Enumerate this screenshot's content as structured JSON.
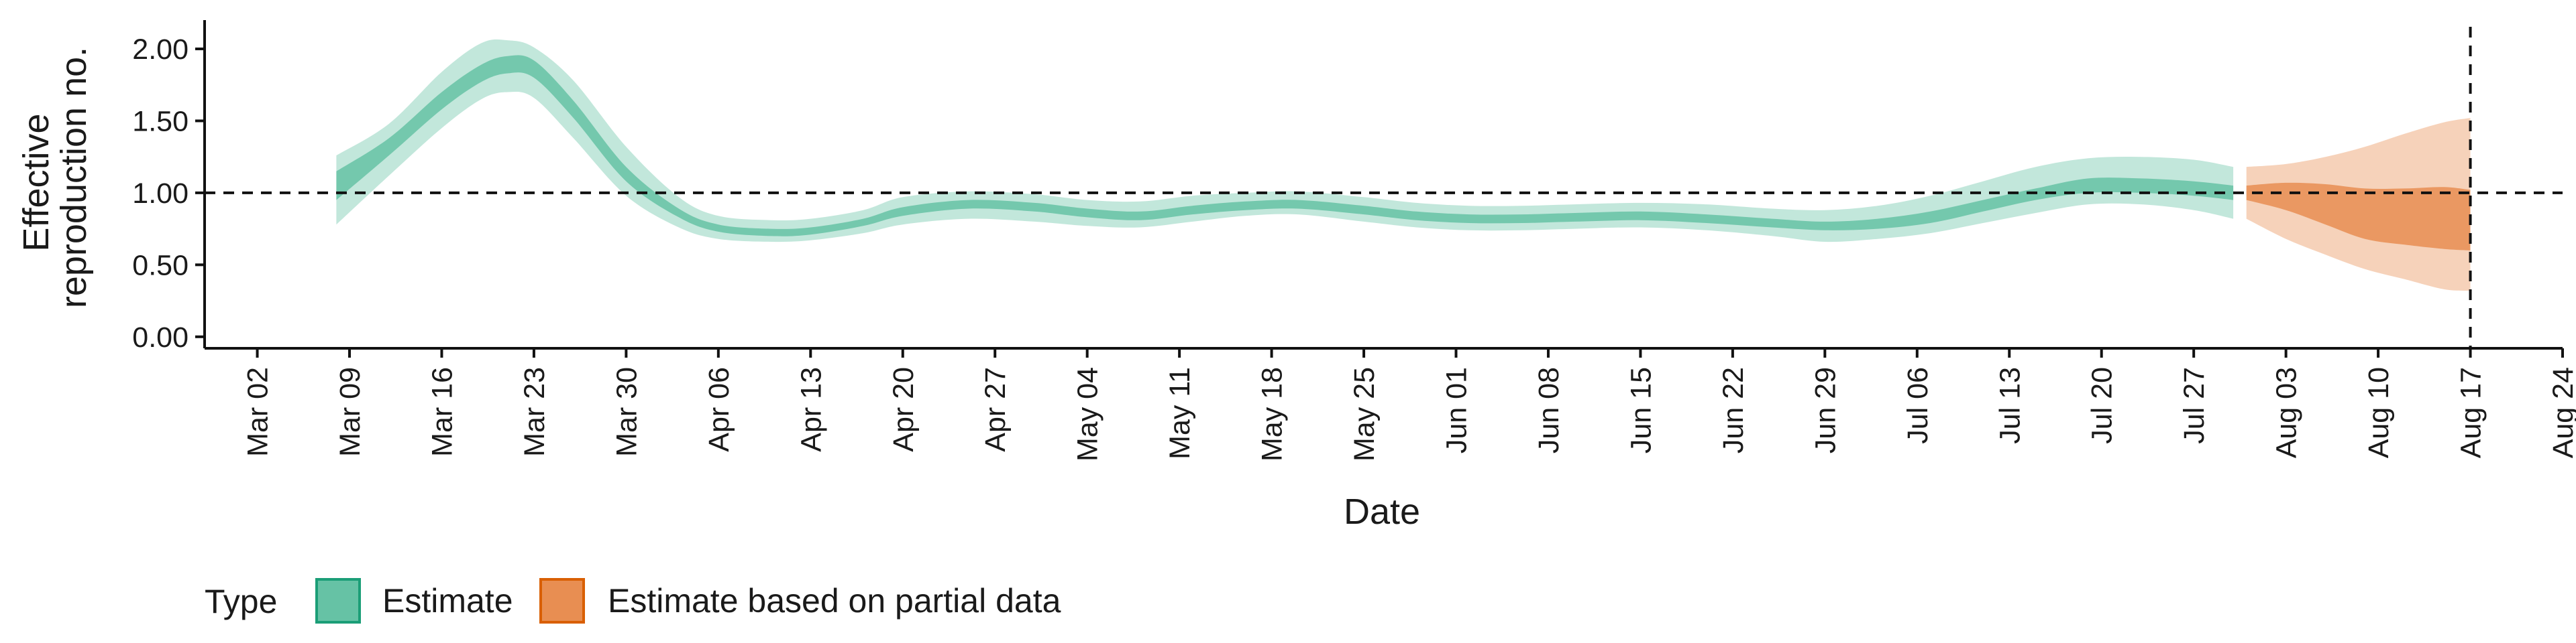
{
  "chart_data": {
    "type": "area",
    "xlabel": "Date",
    "ylabel_lines": [
      "Effective",
      "reproduction no."
    ],
    "x_ticks": [
      "Mar 02",
      "Mar 09",
      "Mar 16",
      "Mar 23",
      "Mar 30",
      "Apr 06",
      "Apr 13",
      "Apr 20",
      "Apr 27",
      "May 04",
      "May 11",
      "May 18",
      "May 25",
      "Jun 01",
      "Jun 08",
      "Jun 15",
      "Jun 22",
      "Jun 29",
      "Jul 06",
      "Jul 13",
      "Jul 20",
      "Jul 27",
      "Aug 03",
      "Aug 10",
      "Aug 17",
      "Aug 24"
    ],
    "xlim": [
      "2020-02-27",
      "2020-08-24"
    ],
    "y_ticks": [
      "0.00",
      "0.50",
      "1.00",
      "1.50",
      "2.00"
    ],
    "y_tick_values": [
      0,
      0.5,
      1.0,
      1.5,
      2.0
    ],
    "ylim": [
      -0.08,
      2.2
    ],
    "reference_hline": 1.0,
    "reference_vline": "2020-08-17",
    "legend": {
      "title": "Type",
      "position": "bottom-left",
      "entries": [
        {
          "label": "Estimate",
          "color": "#66c2a5"
        },
        {
          "label": "Estimate based on partial data",
          "color": "#e88e52"
        }
      ]
    },
    "series": [
      {
        "name": "Estimate",
        "color": "#66c2a5",
        "x": [
          "2020-03-08",
          "2020-03-12",
          "2020-03-16",
          "2020-03-19",
          "2020-03-21",
          "2020-03-23",
          "2020-03-26",
          "2020-03-30",
          "2020-04-03",
          "2020-04-06",
          "2020-04-10",
          "2020-04-13",
          "2020-04-17",
          "2020-04-20",
          "2020-04-25",
          "2020-04-30",
          "2020-05-04",
          "2020-05-08",
          "2020-05-12",
          "2020-05-16",
          "2020-05-20",
          "2020-05-25",
          "2020-05-29",
          "2020-06-02",
          "2020-06-06",
          "2020-06-10",
          "2020-06-15",
          "2020-06-20",
          "2020-06-25",
          "2020-06-29",
          "2020-07-03",
          "2020-07-07",
          "2020-07-11",
          "2020-07-15",
          "2020-07-19",
          "2020-07-23",
          "2020-07-27",
          "2020-07-30"
        ],
        "lower90": [
          0.78,
          1.12,
          1.45,
          1.65,
          1.7,
          1.66,
          1.38,
          0.98,
          0.76,
          0.68,
          0.66,
          0.67,
          0.72,
          0.78,
          0.82,
          0.8,
          0.77,
          0.76,
          0.8,
          0.84,
          0.85,
          0.8,
          0.76,
          0.74,
          0.74,
          0.75,
          0.76,
          0.74,
          0.7,
          0.66,
          0.68,
          0.72,
          0.79,
          0.86,
          0.92,
          0.92,
          0.88,
          0.82
        ],
        "lower50": [
          0.95,
          1.26,
          1.58,
          1.77,
          1.83,
          1.8,
          1.52,
          1.08,
          0.83,
          0.73,
          0.7,
          0.71,
          0.77,
          0.84,
          0.89,
          0.87,
          0.83,
          0.81,
          0.85,
          0.88,
          0.89,
          0.85,
          0.81,
          0.79,
          0.79,
          0.8,
          0.81,
          0.79,
          0.76,
          0.74,
          0.75,
          0.79,
          0.87,
          0.95,
          1.0,
          1.0,
          0.98,
          0.95
        ],
        "upper50": [
          1.15,
          1.38,
          1.7,
          1.89,
          1.95,
          1.92,
          1.64,
          1.18,
          0.89,
          0.78,
          0.75,
          0.76,
          0.82,
          0.9,
          0.95,
          0.93,
          0.89,
          0.87,
          0.91,
          0.94,
          0.95,
          0.91,
          0.87,
          0.85,
          0.85,
          0.86,
          0.87,
          0.85,
          0.82,
          0.8,
          0.82,
          0.87,
          0.95,
          1.03,
          1.1,
          1.1,
          1.08,
          1.05
        ],
        "upper90": [
          1.26,
          1.48,
          1.84,
          2.04,
          2.06,
          2.01,
          1.78,
          1.32,
          0.97,
          0.84,
          0.81,
          0.82,
          0.88,
          0.97,
          1.01,
          0.99,
          0.95,
          0.94,
          0.98,
          1.0,
          1.01,
          0.97,
          0.93,
          0.91,
          0.91,
          0.92,
          0.93,
          0.92,
          0.89,
          0.88,
          0.91,
          0.98,
          1.08,
          1.18,
          1.24,
          1.25,
          1.23,
          1.18
        ]
      },
      {
        "name": "Estimate based on partial data",
        "color": "#e88e52",
        "x": [
          "2020-07-31",
          "2020-08-03",
          "2020-08-06",
          "2020-08-09",
          "2020-08-12",
          "2020-08-15",
          "2020-08-17"
        ],
        "lower90": [
          0.82,
          0.68,
          0.57,
          0.47,
          0.4,
          0.33,
          0.32
        ],
        "lower50": [
          0.95,
          0.88,
          0.78,
          0.68,
          0.64,
          0.61,
          0.6
        ],
        "upper50": [
          1.05,
          1.07,
          1.06,
          1.03,
          1.03,
          1.04,
          1.02
        ],
        "upper90": [
          1.18,
          1.2,
          1.25,
          1.32,
          1.41,
          1.49,
          1.52
        ]
      }
    ]
  }
}
